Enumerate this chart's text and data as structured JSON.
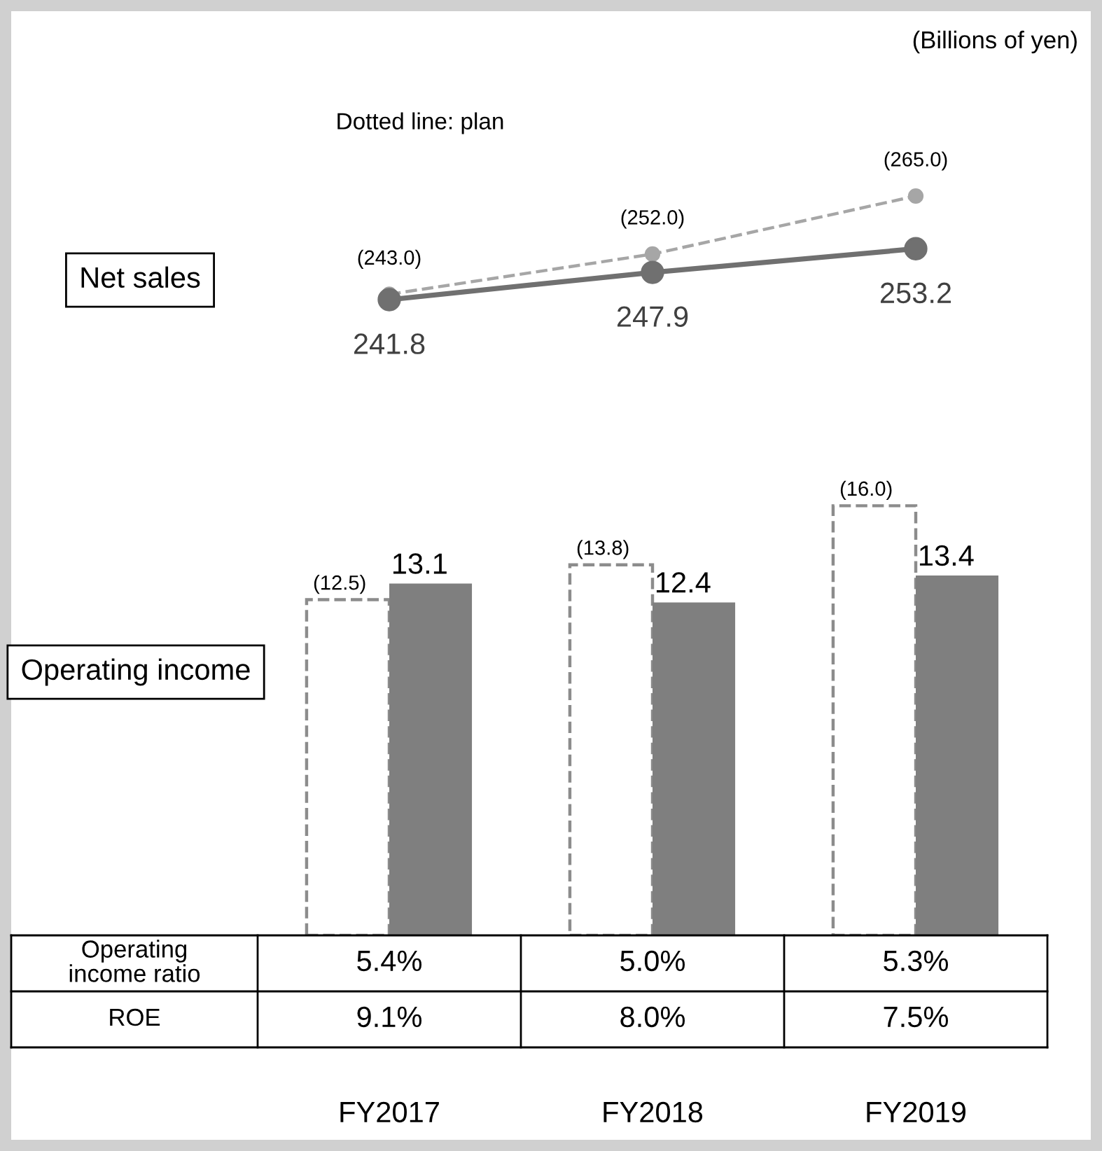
{
  "chart_data": [
    {
      "type": "line",
      "ylabel": "Net sales",
      "annotations": [
        "(Billions of yen)",
        "Dotted line: plan"
      ],
      "categories": [
        null,
        null,
        null
      ],
      "marker": "circle",
      "series": [
        {
          "color": "#a6a6a6",
          "line_style": "dashed",
          "values": [
            243.0,
            252.0,
            265.0
          ],
          "value_labels": [
            "(243.0)",
            "(252.0)",
            "(265.0)"
          ]
        },
        {
          "color": "#707070",
          "line_style": "solid",
          "values": [
            241.8,
            247.9,
            253.2
          ],
          "value_labels": [
            "241.8",
            "247.9",
            "253.2"
          ]
        }
      ]
    },
    {
      "type": "bar",
      "ylabel": "Operating income",
      "categories": [
        null,
        null,
        null
      ],
      "series": [
        {
          "color": "#ffffff",
          "line_style": "dashed",
          "values": [
            12.5,
            13.8,
            16.0
          ],
          "value_labels": [
            "(12.5)",
            "(13.8)",
            "(16.0)"
          ]
        },
        {
          "color": "#7f7f7f",
          "line_style": "solid",
          "values": [
            13.1,
            12.4,
            13.4
          ],
          "value_labels": [
            "13.1",
            "12.4",
            "13.4"
          ]
        }
      ]
    },
    {
      "type": "other",
      "categories": [
        "FY2017",
        "FY2018",
        "FY2019"
      ],
      "y_categories": [
        "Operating\nincome ratio",
        "ROE"
      ],
      "cell_labels": [
        [
          "5.4%",
          "5.0%",
          "5.3%"
        ],
        [
          "9.1%",
          "8.0%",
          "7.5%"
        ]
      ]
    }
  ]
}
